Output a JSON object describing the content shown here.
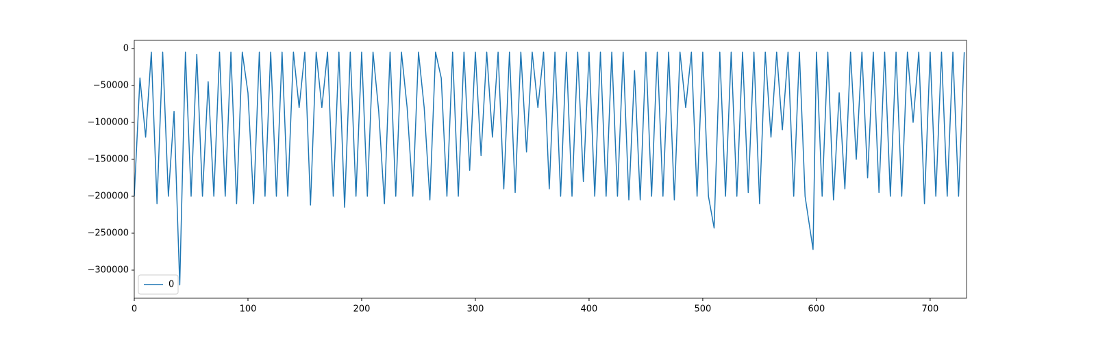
{
  "chart_data": {
    "type": "line",
    "x": [
      0,
      5,
      10,
      15,
      20,
      25,
      30,
      35,
      40,
      45,
      50,
      55,
      60,
      65,
      70,
      75,
      80,
      85,
      90,
      95,
      100,
      105,
      110,
      115,
      120,
      125,
      130,
      135,
      140,
      145,
      150,
      155,
      160,
      165,
      170,
      175,
      180,
      185,
      190,
      195,
      200,
      205,
      210,
      215,
      220,
      225,
      230,
      235,
      240,
      245,
      250,
      255,
      260,
      265,
      270,
      275,
      280,
      285,
      290,
      295,
      300,
      305,
      310,
      315,
      320,
      325,
      330,
      335,
      340,
      345,
      350,
      355,
      360,
      365,
      370,
      375,
      380,
      385,
      390,
      395,
      400,
      405,
      410,
      415,
      420,
      425,
      430,
      435,
      440,
      445,
      450,
      455,
      460,
      465,
      470,
      475,
      480,
      485,
      490,
      495,
      500,
      505,
      510,
      515,
      520,
      525,
      530,
      535,
      540,
      545,
      550,
      555,
      560,
      565,
      570,
      575,
      580,
      585,
      590,
      597,
      600,
      605,
      610,
      615,
      620,
      625,
      630,
      635,
      640,
      645,
      650,
      655,
      660,
      665,
      670,
      675,
      680,
      685,
      690,
      695,
      700,
      705,
      710,
      715,
      720,
      725,
      730
    ],
    "series": [
      {
        "name": "0",
        "color": "#1f77b4",
        "values": [
          -200000,
          -40000,
          -120000,
          -5000,
          -210000,
          -5000,
          -200000,
          -85000,
          -320000,
          -5000,
          -200000,
          -8000,
          -200000,
          -45000,
          -200000,
          -5000,
          -200000,
          -5000,
          -210000,
          -5000,
          -60000,
          -210000,
          -5000,
          -200000,
          -5000,
          -200000,
          -5000,
          -200000,
          -5000,
          -80000,
          -5000,
          -212000,
          -5000,
          -80000,
          -5000,
          -200000,
          -5000,
          -215000,
          -5000,
          -200000,
          -5000,
          -200000,
          -5000,
          -85000,
          -210000,
          -5000,
          -200000,
          -5000,
          -80000,
          -200000,
          -5000,
          -80000,
          -205000,
          -5000,
          -40000,
          -200000,
          -5000,
          -200000,
          -5000,
          -165000,
          -5000,
          -145000,
          -5000,
          -120000,
          -5000,
          -190000,
          -5000,
          -195000,
          -5000,
          -140000,
          -5000,
          -80000,
          -5000,
          -190000,
          -5000,
          -200000,
          -5000,
          -200000,
          -5000,
          -180000,
          -5000,
          -200000,
          -5000,
          -200000,
          -5000,
          -200000,
          -5000,
          -205000,
          -30000,
          -205000,
          -5000,
          -200000,
          -5000,
          -200000,
          -5000,
          -205000,
          -5000,
          -80000,
          -5000,
          -200000,
          -5000,
          -200000,
          -243000,
          -5000,
          -200000,
          -5000,
          -200000,
          -5000,
          -195000,
          -5000,
          -210000,
          -5000,
          -120000,
          -5000,
          -110000,
          -5000,
          -200000,
          -5000,
          -200000,
          -272000,
          -5000,
          -200000,
          -5000,
          -205000,
          -60000,
          -190000,
          -5000,
          -150000,
          -5000,
          -175000,
          -5000,
          -195000,
          -5000,
          -200000,
          -5000,
          -200000,
          -5000,
          -100000,
          -5000,
          -210000,
          -5000,
          -200000,
          -5000,
          -200000,
          -5000,
          -200000,
          -5000
        ]
      }
    ],
    "xlim": [
      0,
      732
    ],
    "ylim": [
      -338000,
      11000
    ],
    "xticks": [
      0,
      100,
      200,
      300,
      400,
      500,
      600,
      700
    ],
    "yticks": [
      {
        "value": -300000,
        "label": "−300000"
      },
      {
        "value": -250000,
        "label": "−250000"
      },
      {
        "value": -200000,
        "label": "−200000"
      },
      {
        "value": -150000,
        "label": "−150000"
      },
      {
        "value": -100000,
        "label": "−100000"
      },
      {
        "value": -50000,
        "label": "−50000"
      },
      0
    ],
    "legend": "lower left",
    "grid": false
  }
}
